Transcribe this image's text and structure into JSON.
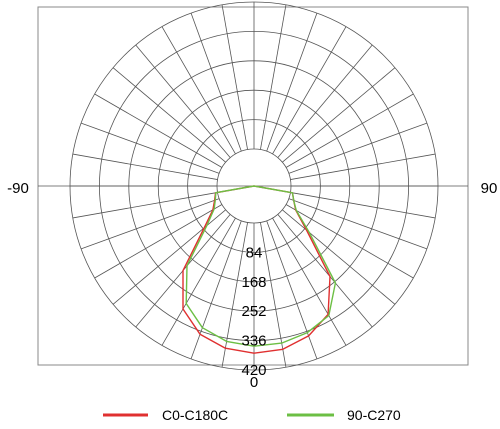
{
  "chart_data": {
    "type": "polar",
    "angle_labels": {
      "left": "-90",
      "right": "90",
      "bottom": "0"
    },
    "radial_ticks": [
      84,
      168,
      252,
      336,
      420
    ],
    "radial_tick_labels": [
      "84",
      "168",
      "252",
      "336",
      "420"
    ],
    "r_max": 420,
    "angle_grid_step_deg": 10,
    "grid": true,
    "legend_position": "bottom-center",
    "series": [
      {
        "name": "C0-C180C",
        "color": "#e03030",
        "points": [
          {
            "angle": -90,
            "value": 0
          },
          {
            "angle": -80,
            "value": 6
          },
          {
            "angle": -70,
            "value": 14
          },
          {
            "angle": -60,
            "value": 30
          },
          {
            "angle": -50,
            "value": 80
          },
          {
            "angle": -40,
            "value": 210
          },
          {
            "angle": -30,
            "value": 300
          },
          {
            "angle": -20,
            "value": 345
          },
          {
            "angle": -10,
            "value": 365
          },
          {
            "angle": 0,
            "value": 372
          },
          {
            "angle": 10,
            "value": 368
          },
          {
            "angle": 20,
            "value": 350
          },
          {
            "angle": 30,
            "value": 318
          },
          {
            "angle": 40,
            "value": 232
          },
          {
            "angle": 50,
            "value": 90
          },
          {
            "angle": 60,
            "value": 32
          },
          {
            "angle": 70,
            "value": 15
          },
          {
            "angle": 80,
            "value": 6
          },
          {
            "angle": 90,
            "value": 0
          }
        ]
      },
      {
        "name": "90-C270",
        "color": "#6cbf44",
        "points": [
          {
            "angle": -90,
            "value": 0
          },
          {
            "angle": -80,
            "value": 5
          },
          {
            "angle": -70,
            "value": 12
          },
          {
            "angle": -60,
            "value": 26
          },
          {
            "angle": -50,
            "value": 70
          },
          {
            "angle": -40,
            "value": 192
          },
          {
            "angle": -30,
            "value": 282
          },
          {
            "angle": -20,
            "value": 325
          },
          {
            "angle": -10,
            "value": 345
          },
          {
            "angle": 0,
            "value": 352
          },
          {
            "angle": 10,
            "value": 350
          },
          {
            "angle": 20,
            "value": 340
          },
          {
            "angle": 30,
            "value": 322
          },
          {
            "angle": 40,
            "value": 256
          },
          {
            "angle": 50,
            "value": 100
          },
          {
            "angle": 60,
            "value": 34
          },
          {
            "angle": 70,
            "value": 15
          },
          {
            "angle": 80,
            "value": 6
          },
          {
            "angle": 90,
            "value": 0
          }
        ]
      }
    ]
  }
}
